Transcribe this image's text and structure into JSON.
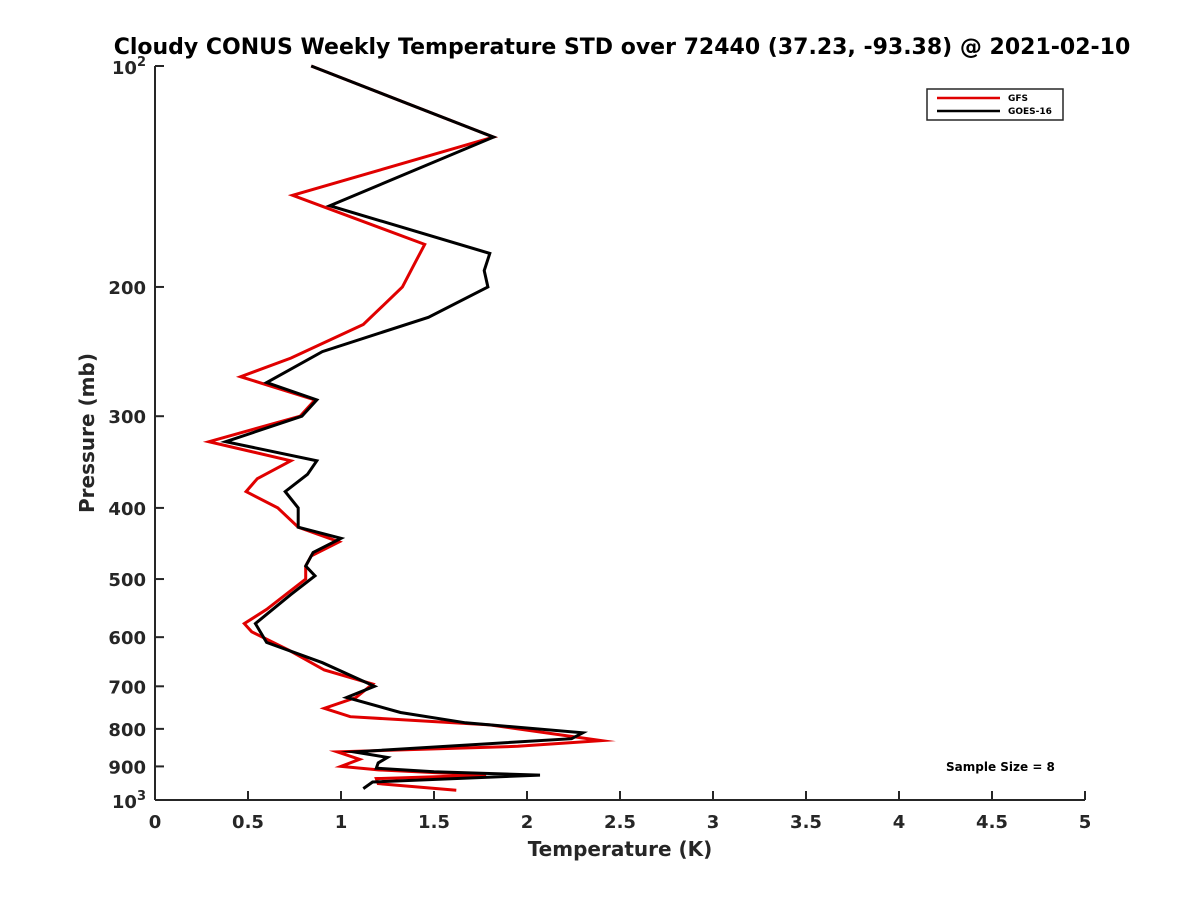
{
  "chart_data": {
    "type": "line",
    "title": "Cloudy CONUS Weekly Temperature STD over 72440 (37.23, -93.38) @ 2021-02-10",
    "xlabel": "Temperature (K)",
    "ylabel": "Pressure (mb)",
    "xlim": [
      0,
      5
    ],
    "ylim": [
      100,
      1000
    ],
    "y_scale": "log",
    "y_reversed": true,
    "grid": false,
    "legend_position": "top-right",
    "x_ticks": [
      {
        "value": 0,
        "label": "0"
      },
      {
        "value": 0.5,
        "label": "0.5"
      },
      {
        "value": 1,
        "label": "1"
      },
      {
        "value": 1.5,
        "label": "1.5"
      },
      {
        "value": 2,
        "label": "2"
      },
      {
        "value": 2.5,
        "label": "2.5"
      },
      {
        "value": 3,
        "label": "3"
      },
      {
        "value": 3.5,
        "label": "3.5"
      },
      {
        "value": 4,
        "label": "4"
      },
      {
        "value": 4.5,
        "label": "4.5"
      },
      {
        "value": 5,
        "label": "5"
      }
    ],
    "y_ticks": [
      {
        "value": 100,
        "base": "10",
        "exp": "2"
      },
      {
        "value": 200,
        "label": "200"
      },
      {
        "value": 300,
        "label": "300"
      },
      {
        "value": 400,
        "label": "400"
      },
      {
        "value": 500,
        "label": "500"
      },
      {
        "value": 600,
        "label": "600"
      },
      {
        "value": 700,
        "label": "700"
      },
      {
        "value": 800,
        "label": "800"
      },
      {
        "value": 900,
        "label": "900"
      },
      {
        "value": 1000,
        "base": "10",
        "exp": "3"
      }
    ],
    "series": [
      {
        "name": "GFS",
        "color": "#e00000",
        "points": [
          [
            0.84,
            100
          ],
          [
            1.82,
            125
          ],
          [
            0.74,
            150
          ],
          [
            1.45,
            175
          ],
          [
            1.4,
            185
          ],
          [
            1.33,
            200
          ],
          [
            1.12,
            225
          ],
          [
            0.73,
            250
          ],
          [
            0.46,
            265
          ],
          [
            0.86,
            285
          ],
          [
            0.78,
            300
          ],
          [
            0.29,
            325
          ],
          [
            0.73,
            345
          ],
          [
            0.55,
            365
          ],
          [
            0.49,
            380
          ],
          [
            0.66,
            400
          ],
          [
            0.77,
            425
          ],
          [
            0.99,
            445
          ],
          [
            0.84,
            465
          ],
          [
            0.81,
            480
          ],
          [
            0.81,
            500
          ],
          [
            0.6,
            550
          ],
          [
            0.48,
            575
          ],
          [
            0.52,
            590
          ],
          [
            0.72,
            625
          ],
          [
            0.91,
            665
          ],
          [
            1.17,
            695
          ],
          [
            1.08,
            725
          ],
          [
            0.91,
            750
          ],
          [
            1.05,
            770
          ],
          [
            1.8,
            790
          ],
          [
            2.4,
            830
          ],
          [
            1.95,
            845
          ],
          [
            0.98,
            860
          ],
          [
            1.1,
            880
          ],
          [
            1.0,
            900
          ],
          [
            1.2,
            910
          ],
          [
            1.78,
            925
          ],
          [
            1.19,
            935
          ],
          [
            1.2,
            950
          ],
          [
            1.62,
            970
          ]
        ]
      },
      {
        "name": "GOES-16",
        "color": "#000000",
        "points": [
          [
            0.84,
            100
          ],
          [
            1.82,
            125
          ],
          [
            0.94,
            155
          ],
          [
            1.8,
            180
          ],
          [
            1.77,
            190
          ],
          [
            1.79,
            200
          ],
          [
            1.47,
            220
          ],
          [
            0.9,
            245
          ],
          [
            0.6,
            270
          ],
          [
            0.87,
            285
          ],
          [
            0.79,
            300
          ],
          [
            0.38,
            325
          ],
          [
            0.87,
            345
          ],
          [
            0.82,
            360
          ],
          [
            0.7,
            380
          ],
          [
            0.77,
            400
          ],
          [
            0.77,
            425
          ],
          [
            1.0,
            440
          ],
          [
            0.85,
            460
          ],
          [
            0.81,
            480
          ],
          [
            0.86,
            495
          ],
          [
            0.73,
            525
          ],
          [
            0.54,
            575
          ],
          [
            0.6,
            610
          ],
          [
            0.9,
            650
          ],
          [
            1.18,
            700
          ],
          [
            1.03,
            725
          ],
          [
            1.32,
            760
          ],
          [
            1.67,
            785
          ],
          [
            2.3,
            810
          ],
          [
            2.24,
            825
          ],
          [
            1.07,
            860
          ],
          [
            1.25,
            875
          ],
          [
            1.2,
            890
          ],
          [
            1.19,
            905
          ],
          [
            1.5,
            915
          ],
          [
            2.07,
            925
          ],
          [
            1.17,
            945
          ],
          [
            1.12,
            965
          ]
        ]
      }
    ],
    "annotation": "Sample Size = 8"
  }
}
